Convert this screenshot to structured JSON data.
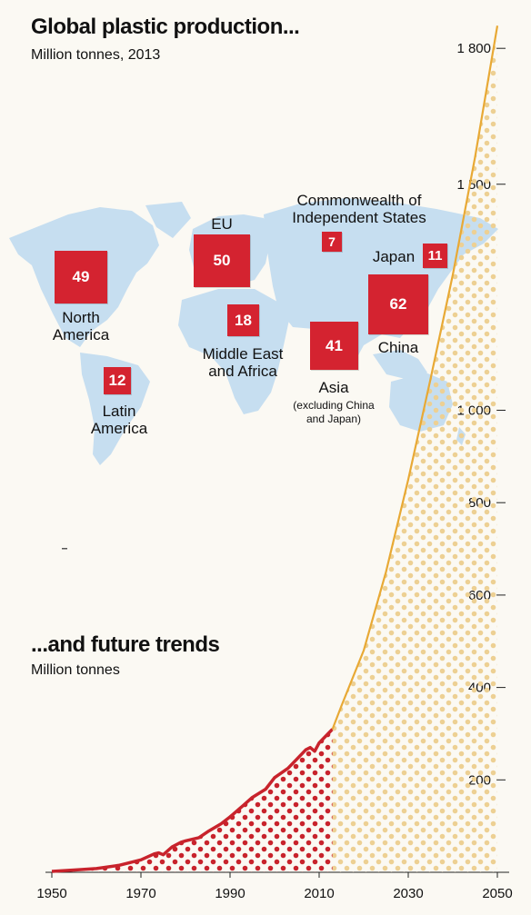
{
  "top": {
    "title": "Global plastic production...",
    "subtitle": "Million tonnes, 2013",
    "regions": [
      {
        "id": "north-america",
        "value": 49,
        "label_lines": [
          "North",
          "America"
        ]
      },
      {
        "id": "latin-america",
        "value": 12,
        "label_lines": [
          "Latin",
          "America"
        ]
      },
      {
        "id": "eu",
        "value": 50,
        "label_lines": [
          "EU"
        ]
      },
      {
        "id": "middle-east-africa",
        "value": 18,
        "label_lines": [
          "Middle East",
          "and Africa"
        ]
      },
      {
        "id": "cis",
        "value": 7,
        "label_lines": [
          "Commonwealth of",
          "Independent States"
        ]
      },
      {
        "id": "asia",
        "value": 41,
        "label_lines": [
          "Asia"
        ],
        "note_lines": [
          "(excluding China",
          "and Japan)"
        ]
      },
      {
        "id": "china",
        "value": 62,
        "label_lines": [
          "China"
        ]
      },
      {
        "id": "japan",
        "value": 11,
        "label_lines": [
          "Japan"
        ]
      }
    ]
  },
  "bottom": {
    "title": "...and future trends",
    "subtitle": "Million tonnes"
  },
  "colors": {
    "historical": "#c8232c",
    "forecast": "#e8a935",
    "forecast_dots": "#edd093",
    "map": "#c6def0",
    "box": "#d42330"
  },
  "chart_data": {
    "type": "area",
    "y_scale": "piecewise-linear (1 000 and above drawn compressed)",
    "xlim": [
      1950,
      2050
    ],
    "x_ticks": [
      "1950",
      "1970",
      "1990",
      "2010",
      "2030",
      "2050"
    ],
    "y_ticks": [
      "200",
      "400",
      "600",
      "800",
      "1 000",
      "1 500",
      "1 800"
    ],
    "grid": false,
    "series": [
      {
        "segment": "historical",
        "x": [
          1950,
          1955,
          1960,
          1965,
          1970,
          1973,
          1974,
          1975,
          1977,
          1979,
          1980,
          1983,
          1985,
          1988,
          1990,
          1993,
          1995,
          1998,
          2000,
          2003,
          2005,
          2007,
          2008,
          2009,
          2010,
          2012,
          2013
        ],
        "y": [
          2,
          5,
          8,
          15,
          27,
          40,
          42,
          38,
          55,
          65,
          68,
          75,
          88,
          105,
          120,
          145,
          162,
          180,
          205,
          225,
          245,
          265,
          270,
          262,
          280,
          300,
          310
        ]
      },
      {
        "segment": "forecast",
        "x": [
          2013,
          2015,
          2020,
          2025,
          2030,
          2035,
          2040,
          2045,
          2050
        ],
        "y": [
          310,
          360,
          480,
          650,
          850,
          1070,
          1300,
          1560,
          1850
        ]
      }
    ]
  }
}
